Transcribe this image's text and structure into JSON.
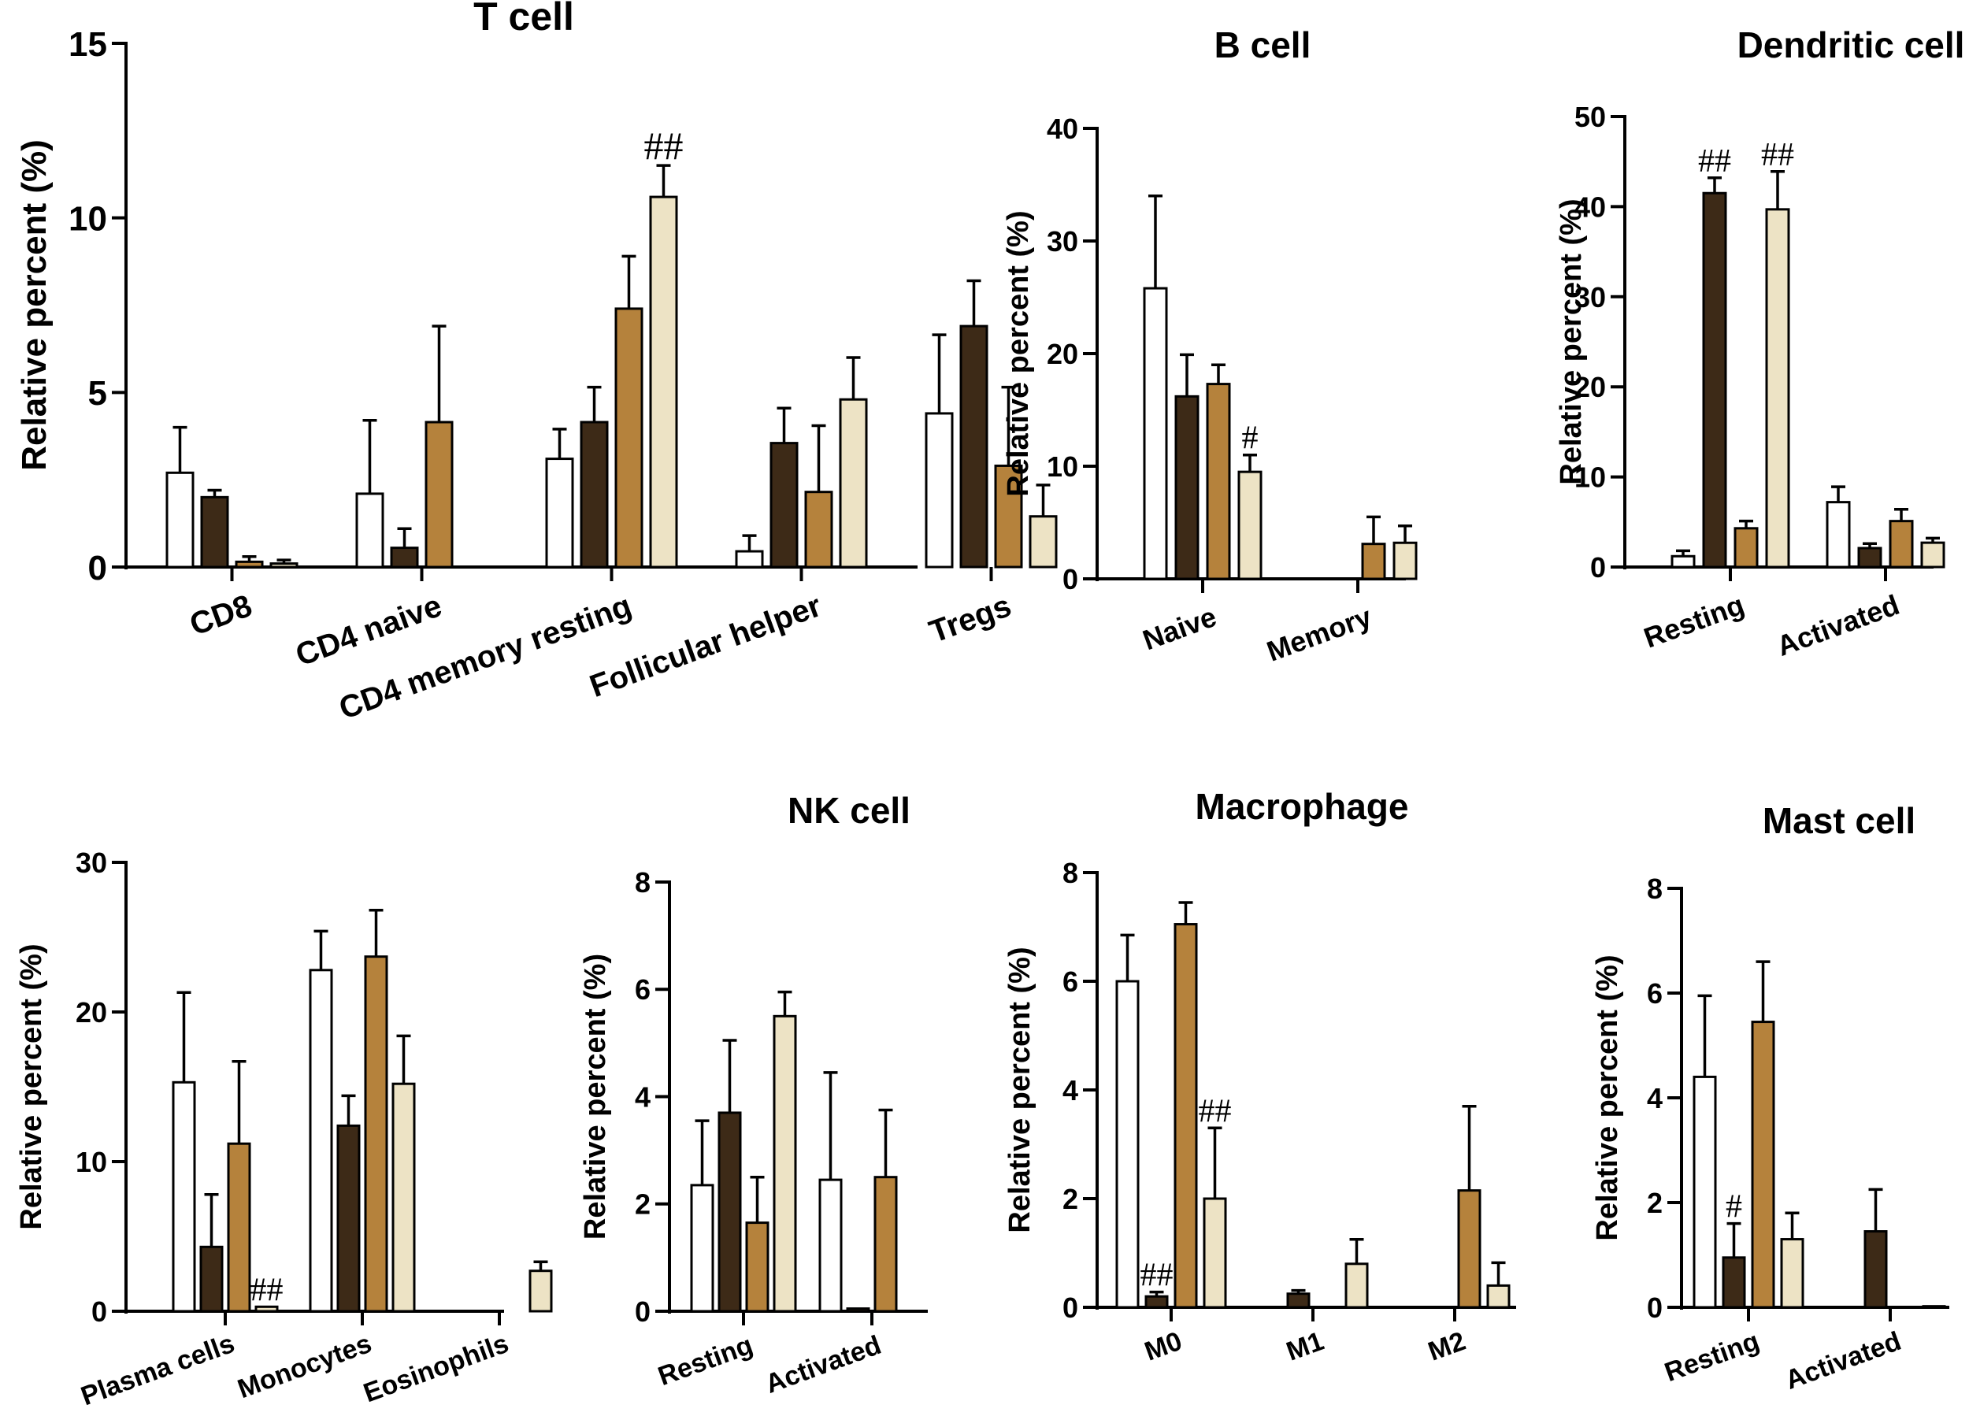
{
  "colors": {
    "series": [
      "#ffffff",
      "#3d2a17",
      "#b5823c",
      "#ede3c5"
    ],
    "stroke": "#000000"
  },
  "chart_data": [
    {
      "type": "bar",
      "title": "T cell",
      "ylabel": "Relative percent (%)",
      "ylim": [
        0,
        15
      ],
      "yticks": [
        "0",
        "5",
        "10",
        "15"
      ],
      "categories": [
        "CD8",
        "CD4 naive",
        "CD4 memory resting",
        "Follicular helper",
        "Tregs"
      ],
      "series": [
        {
          "values": [
            2.7,
            2.1,
            3.1,
            0.45,
            4.4
          ],
          "errors": [
            1.3,
            2.1,
            0.85,
            0.45,
            2.25
          ]
        },
        {
          "values": [
            2.0,
            0.55,
            4.15,
            3.55,
            6.9
          ],
          "errors": [
            0.2,
            0.55,
            1.0,
            1.0,
            1.3
          ]
        },
        {
          "values": [
            0.15,
            4.15,
            7.4,
            2.15,
            2.9
          ],
          "errors": [
            0.15,
            2.75,
            1.5,
            1.9,
            2.25
          ]
        },
        {
          "values": [
            0.1,
            null,
            10.6,
            4.8,
            1.45
          ],
          "errors": [
            0.1,
            0,
            0.9,
            1.2,
            0.9
          ]
        }
      ],
      "annotations": [
        {
          "category": 2,
          "series": 3,
          "text": "##"
        }
      ]
    },
    {
      "type": "bar",
      "title": "B cell",
      "ylabel": "Relative percent (%)",
      "ylim": [
        0,
        40
      ],
      "yticks": [
        "0",
        "10",
        "20",
        "30",
        "40"
      ],
      "categories": [
        "Naive",
        "Memory"
      ],
      "series": [
        {
          "values": [
            25.8,
            null
          ],
          "errors": [
            8.2,
            0
          ]
        },
        {
          "values": [
            16.2,
            null
          ],
          "errors": [
            3.7,
            0
          ]
        },
        {
          "values": [
            17.3,
            3.1
          ],
          "errors": [
            1.7,
            2.4
          ]
        },
        {
          "values": [
            9.5,
            3.2
          ],
          "errors": [
            1.5,
            1.5
          ]
        }
      ],
      "annotations": [
        {
          "category": 0,
          "series": 3,
          "text": "#"
        }
      ]
    },
    {
      "type": "bar",
      "title": "Dendritic cell",
      "ylabel": "Relative percent (%)",
      "ylim": [
        0,
        50
      ],
      "yticks": [
        "0",
        "10",
        "20",
        "30",
        "40",
        "50"
      ],
      "categories": [
        "Resting",
        "Activated"
      ],
      "series": [
        {
          "values": [
            1.2,
            7.2
          ],
          "errors": [
            0.6,
            1.7
          ]
        },
        {
          "values": [
            41.5,
            2.1
          ],
          "errors": [
            1.7,
            0.5
          ]
        },
        {
          "values": [
            4.3,
            5.1
          ],
          "errors": [
            0.8,
            1.3
          ]
        },
        {
          "values": [
            39.7,
            2.7
          ],
          "errors": [
            4.2,
            0.5
          ]
        }
      ],
      "annotations": [
        {
          "category": 0,
          "series": 1,
          "text": "##"
        },
        {
          "category": 0,
          "series": 3,
          "text": "##"
        }
      ]
    },
    {
      "type": "bar",
      "title": "",
      "ylabel": "Relative percent (%)",
      "ylim": [
        0,
        30
      ],
      "yticks": [
        "0",
        "10",
        "20",
        "30"
      ],
      "categories": [
        "Plasma cells",
        "Monocytes",
        "Eosinophils"
      ],
      "series": [
        {
          "values": [
            15.3,
            22.8,
            null
          ],
          "errors": [
            6.0,
            2.6,
            0
          ]
        },
        {
          "values": [
            4.3,
            12.4,
            null
          ],
          "errors": [
            3.5,
            2.0,
            0
          ]
        },
        {
          "values": [
            11.2,
            23.7,
            null
          ],
          "errors": [
            5.5,
            3.1,
            0
          ]
        },
        {
          "values": [
            0.3,
            15.2,
            2.7
          ],
          "errors": [
            0,
            3.2,
            0.6
          ]
        }
      ],
      "annotations": [
        {
          "category": 0,
          "series": 3,
          "text": "##"
        }
      ]
    },
    {
      "type": "bar",
      "title": "NK cell",
      "ylabel": "Relative percent (%)",
      "ylim": [
        0,
        8
      ],
      "yticks": [
        "0",
        "2",
        "4",
        "6",
        "8"
      ],
      "categories": [
        "Resting",
        "Activated"
      ],
      "series": [
        {
          "values": [
            2.35,
            2.45
          ],
          "errors": [
            1.2,
            2.0
          ]
        },
        {
          "values": [
            3.7,
            0.05
          ],
          "errors": [
            1.35,
            0
          ]
        },
        {
          "values": [
            1.65,
            2.5
          ],
          "errors": [
            0.85,
            1.25
          ]
        },
        {
          "values": [
            5.5,
            null
          ],
          "errors": [
            0.45,
            0
          ]
        }
      ],
      "annotations": []
    },
    {
      "type": "bar",
      "title": "Macrophage",
      "ylabel": "Relative percent (%)",
      "ylim": [
        0,
        8
      ],
      "yticks": [
        "0",
        "2",
        "4",
        "6",
        "8"
      ],
      "categories": [
        "M0",
        "M1",
        "M2"
      ],
      "series": [
        {
          "values": [
            6.0,
            null,
            null
          ],
          "errors": [
            0.85,
            0,
            0
          ]
        },
        {
          "values": [
            0.2,
            0.25,
            null
          ],
          "errors": [
            0.08,
            0.06,
            0
          ]
        },
        {
          "values": [
            7.05,
            null,
            2.15
          ],
          "errors": [
            0.4,
            0,
            1.55
          ]
        },
        {
          "values": [
            2.0,
            0.8,
            0.4
          ],
          "errors": [
            1.3,
            0.45,
            0.42
          ]
        }
      ],
      "annotations": [
        {
          "category": 0,
          "series": 1,
          "text": "##"
        },
        {
          "category": 0,
          "series": 3,
          "text": "##"
        }
      ]
    },
    {
      "type": "bar",
      "title": "Mast cell",
      "ylabel": "Relative percent (%)",
      "ylim": [
        0,
        8
      ],
      "yticks": [
        "0",
        "2",
        "4",
        "6",
        "8"
      ],
      "categories": [
        "Resting",
        "Activated"
      ],
      "series": [
        {
          "values": [
            4.4,
            null
          ],
          "errors": [
            1.55,
            0
          ]
        },
        {
          "values": [
            0.95,
            1.45
          ],
          "errors": [
            0.65,
            0.8
          ]
        },
        {
          "values": [
            5.45,
            null
          ],
          "errors": [
            1.15,
            0
          ]
        },
        {
          "values": [
            1.3,
            0.02
          ],
          "errors": [
            0.5,
            0
          ]
        }
      ],
      "annotations": [
        {
          "category": 0,
          "series": 1,
          "text": "#"
        }
      ]
    }
  ]
}
